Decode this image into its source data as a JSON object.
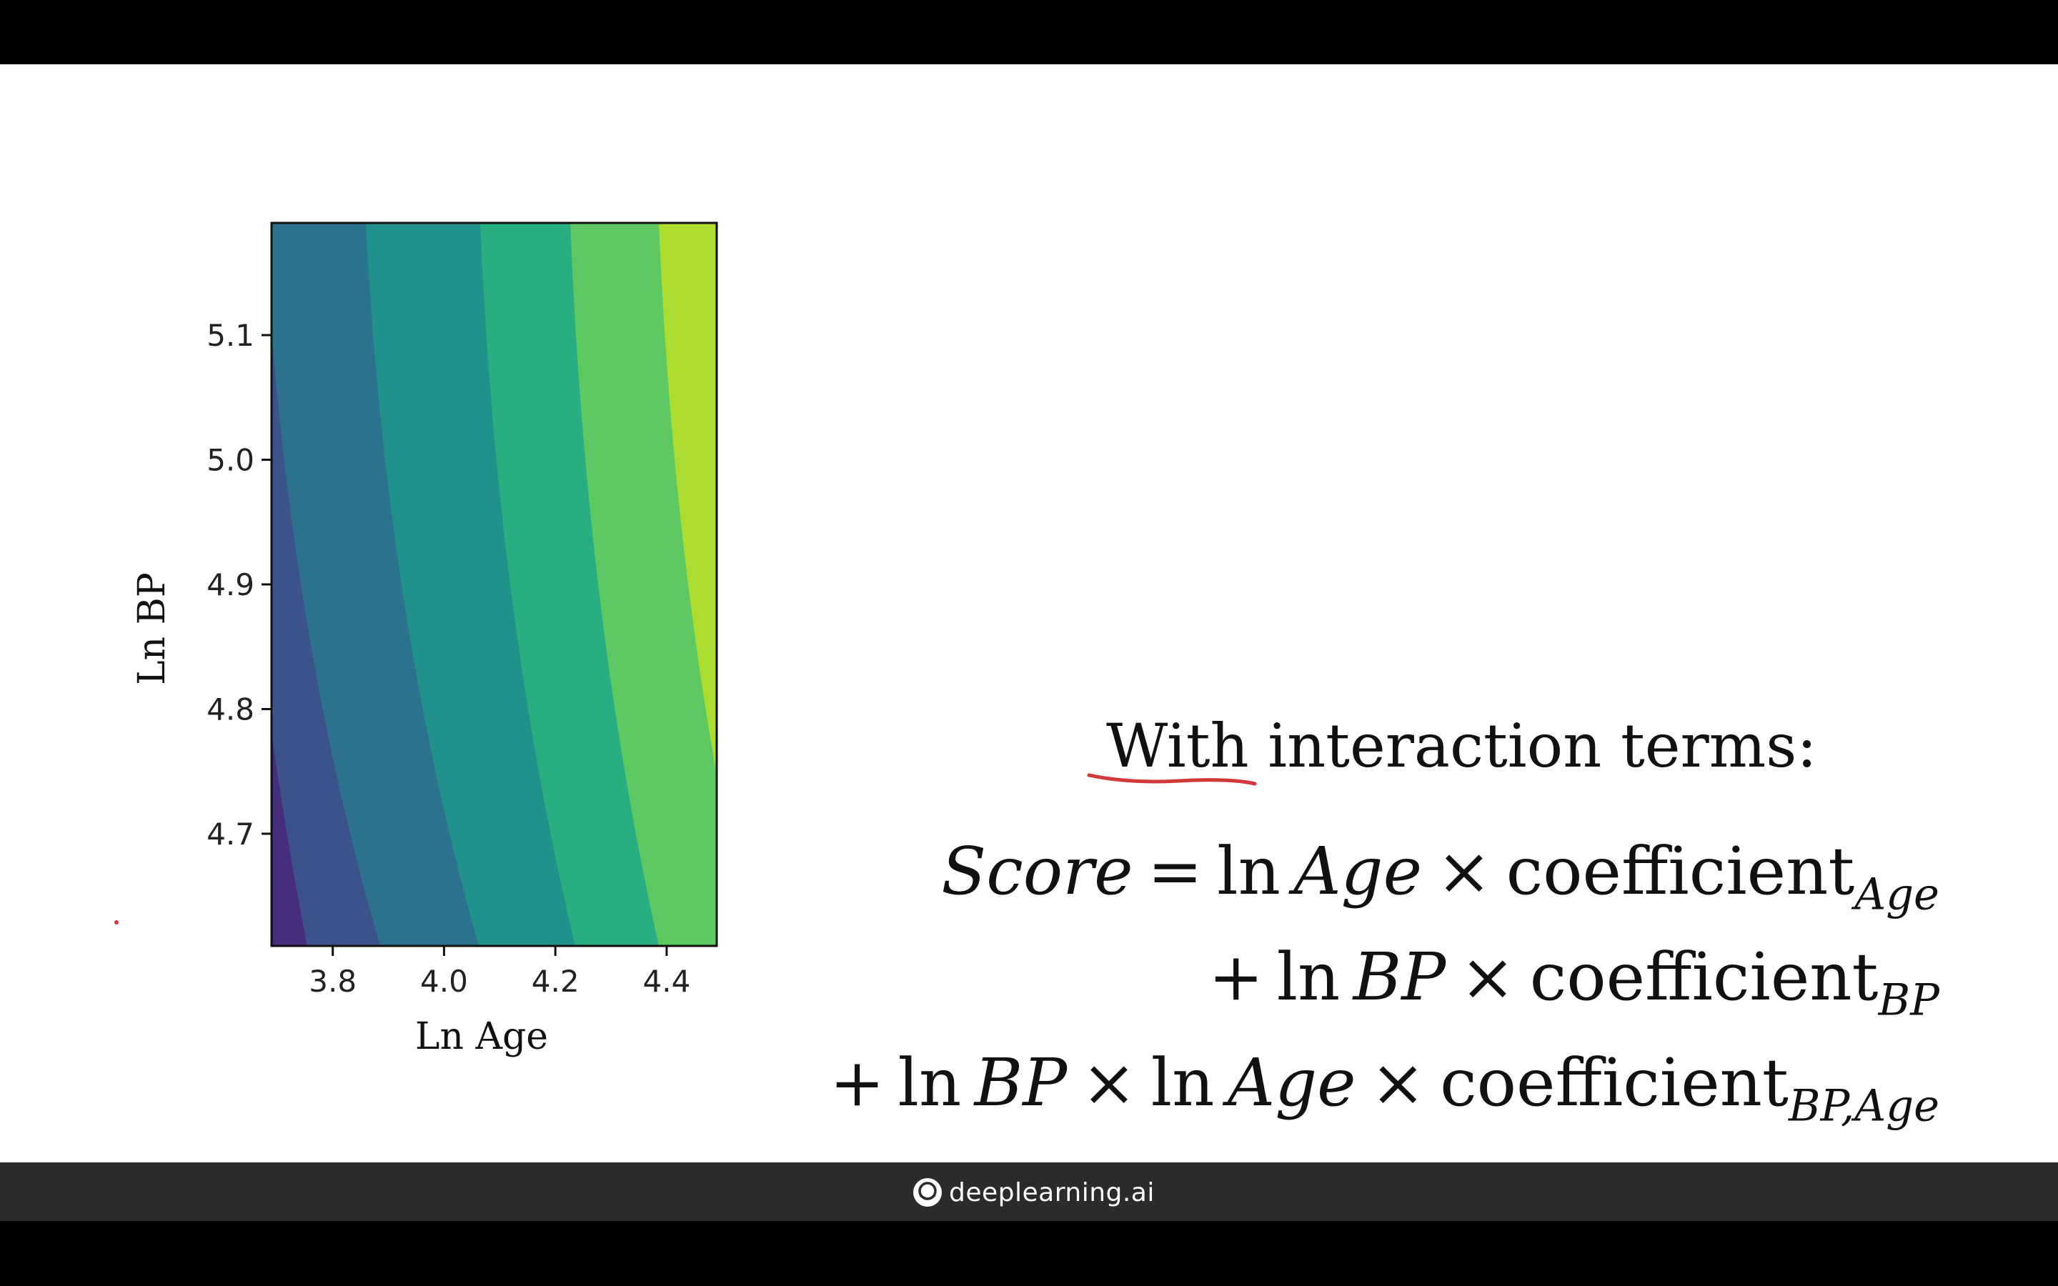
{
  "brand": {
    "name": "deeplearning.ai",
    "icon": "deeplearning-logo-icon"
  },
  "slide": {
    "heading": "With interaction terms:",
    "equation": {
      "lhs": "Score",
      "eq_sign": "=",
      "line1": {
        "fn": "ln",
        "var": "Age",
        "times": "×",
        "word": "coefficient",
        "sub": "Age"
      },
      "line2": {
        "plus": "+",
        "fn": "ln",
        "var": "BP",
        "times": "×",
        "word": "coefficient",
        "sub": "BP"
      },
      "line3": {
        "plus": "+",
        "fn1": "ln",
        "var1": "BP",
        "times1": "×",
        "fn2": "ln",
        "var2": "Age",
        "times2": "×",
        "word": "coefficient",
        "sub": "BP,Age"
      }
    },
    "annotation_color": "#d23a3a"
  },
  "chart_data": {
    "type": "heatmap",
    "subtype": "filled-contour",
    "colormap": "viridis",
    "xlabel": "Ln Age",
    "ylabel": "Ln BP",
    "xlim": [
      3.69,
      4.49
    ],
    "ylim": [
      4.61,
      5.19
    ],
    "x_ticks": [
      3.8,
      4.0,
      4.2,
      4.4
    ],
    "x_tick_labels": [
      "3.8",
      "4.0",
      "4.2",
      "4.4"
    ],
    "y_ticks": [
      4.7,
      4.8,
      4.9,
      5.0,
      5.1
    ],
    "y_tick_labels": [
      "4.7",
      "4.8",
      "4.9",
      "5.0",
      "5.1"
    ],
    "level_colors": [
      "#440154",
      "#472d7b",
      "#3b528b",
      "#2c728e",
      "#21918c",
      "#28ae80",
      "#5ec962",
      "#addc30",
      "#fde725"
    ],
    "bands_visible": [
      "#472d7b",
      "#3b528b",
      "#2c728e",
      "#21918c",
      "#28ae80",
      "#5ec962",
      "#addc30",
      "#d2e21b"
    ],
    "legend": "none",
    "grid": false
  }
}
